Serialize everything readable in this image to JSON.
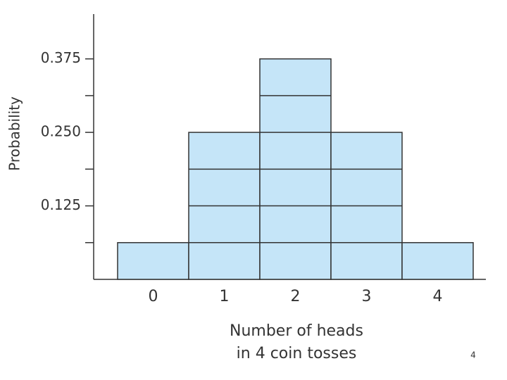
{
  "chart_data": {
    "type": "bar",
    "y_label": "Probability",
    "x_label": [
      "Number of heads",
      "in 4 coin tosses"
    ],
    "categories": [
      "0",
      "1",
      "2",
      "3",
      "4"
    ],
    "values": [
      0.0625,
      0.25,
      0.375,
      0.25,
      0.0625
    ],
    "color": "#c5e5f8",
    "ylim": [
      0,
      0.45
    ],
    "yticks": [
      0.125,
      {
        "value": 0.25,
        "label": "0.250"
      },
      0.375
    ],
    "minor_yticks": [
      0.0625,
      0.1875,
      0.3125
    ]
  },
  "page_number": "4"
}
